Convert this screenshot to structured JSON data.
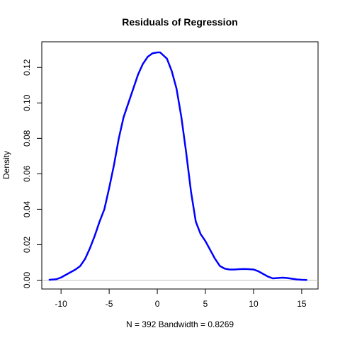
{
  "chart_data": {
    "type": "line",
    "title": "Residuals of Regression",
    "xlabel": "N = 392   Bandwidth = 0.8269",
    "ylabel": "Density",
    "xlim": [
      -12.0,
      16.7
    ],
    "ylim": [
      -0.005,
      0.1345
    ],
    "x_ticks": [
      -10,
      -5,
      0,
      5,
      10,
      15
    ],
    "y_ticks": [
      0.0,
      0.02,
      0.04,
      0.06,
      0.08,
      0.1,
      0.12
    ],
    "x_tick_labels": [
      "-10",
      "-5",
      "0",
      "5",
      "10",
      "15"
    ],
    "y_tick_labels": [
      "0.00",
      "0.02",
      "0.04",
      "0.06",
      "0.08",
      "0.10",
      "0.12"
    ],
    "baseline": 0,
    "grid": false,
    "colors": {
      "series": "#0000ff",
      "baseline": "#bebebe",
      "axis": "#000000"
    },
    "series": [
      {
        "x": [
          -11.2,
          -10.5,
          -10.0,
          -9.5,
          -9.0,
          -8.5,
          -8.0,
          -7.5,
          -7.0,
          -6.5,
          -6.0,
          -5.5,
          -5.0,
          -4.5,
          -4.0,
          -3.5,
          -3.0,
          -2.5,
          -2.0,
          -1.5,
          -1.0,
          -0.5,
          0.0,
          0.3,
          0.5,
          1.0,
          1.5,
          2.0,
          2.5,
          3.0,
          3.5,
          4.0,
          4.5,
          5.0,
          5.5,
          6.0,
          6.5,
          7.0,
          7.5,
          8.0,
          8.5,
          9.0,
          9.5,
          10.0,
          10.5,
          11.0,
          11.5,
          12.0,
          12.5,
          13.0,
          13.5,
          14.0,
          14.5,
          15.0,
          15.5
        ],
        "y": [
          0.0002,
          0.0005,
          0.0015,
          0.003,
          0.0045,
          0.006,
          0.008,
          0.012,
          0.018,
          0.025,
          0.033,
          0.04,
          0.052,
          0.065,
          0.08,
          0.092,
          0.1,
          0.108,
          0.116,
          0.122,
          0.126,
          0.128,
          0.1285,
          0.1285,
          0.1275,
          0.125,
          0.118,
          0.108,
          0.092,
          0.072,
          0.05,
          0.033,
          0.026,
          0.022,
          0.017,
          0.012,
          0.008,
          0.0065,
          0.006,
          0.006,
          0.0062,
          0.0063,
          0.0062,
          0.006,
          0.005,
          0.0035,
          0.002,
          0.001,
          0.0012,
          0.0014,
          0.0012,
          0.0008,
          0.0004,
          0.0002,
          0.0001
        ]
      }
    ]
  }
}
